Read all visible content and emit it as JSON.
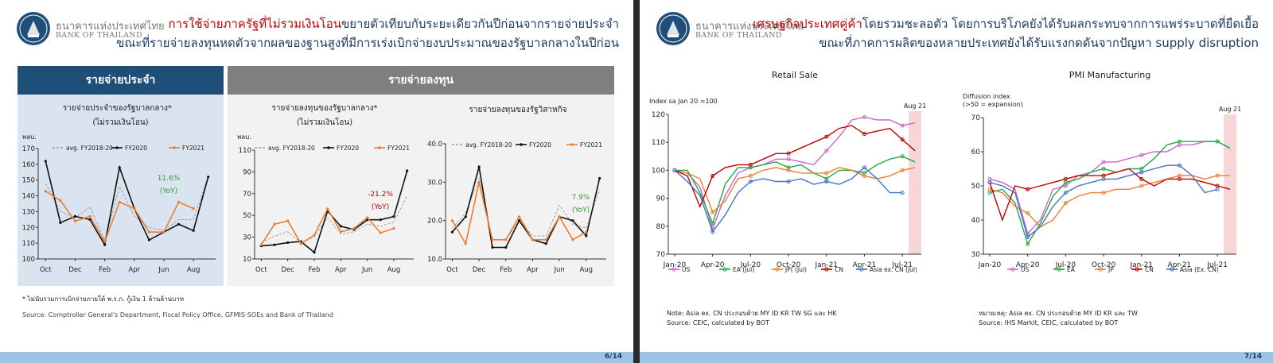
{
  "slide1": {
    "bank_name_th": "ธนาคารแห่งประเทศไทย",
    "bank_name_en": "BANK OF THAILAND",
    "title_line1_red": "การใช้จ่ายภาครัฐที่ไม่รวมเงินโอน",
    "title_line1_rest": "ขยายตัวเทียบกับระยะเดียวกันปีก่อนจากรายจ่ายประจำ",
    "title_line2": "ขณะที่รายจ่ายลงทุนหดตัวจากผลของฐานสูงที่มีการเร่งเบิกจ่ายงบประมาณของรัฐบาลกลางในปีก่อน",
    "section_current": "รายจ่ายประจำ",
    "section_capital": "รายจ่ายลงทุน",
    "footnote": "* ไม่นับรวมการเบิกจ่ายภายใต้ พ.ร.ก. กู้เงิน 1 ล้านล้านบาท",
    "source": "Source: Comptroller General's Department, Fiscal Policy Office, GFMIS-SOEs and Bank of Thailand",
    "page": "6/14"
  },
  "slide2": {
    "bank_name_th": "ธนาคารแห่งประเทศไทย",
    "bank_name_en": "BANK OF THAILAND",
    "title_line1_red": "เศรษฐกิจประเทศคู่ค้า",
    "title_line1_rest": "โดยรวมชะลอตัว โดยการบริโภคยังได้รับผลกระทบจากการแพร่ระบาดที่ยืดเยื้อ",
    "title_line2": "ขณะที่ภาคการผลิตของหลายประเทศยังได้รับแรงกดดันจากปัญหา supply disruption",
    "note_retail": "Note: Asia ex. CN ประกอบด้วย MY ID  KR TW SG และ HK",
    "source_retail": "Source: CEIC, calculated by BOT",
    "note_pmi": "หมายเหตุ: Asia ex. CN ประกอบด้วย MY ID KR และ TW",
    "source_pmi": "Source: IHS Markit, CEIC, calculated by BOT",
    "page": "7/14"
  },
  "chart_data": [
    {
      "type": "line",
      "title": "รายจ่ายประจำของรัฐบาลกลาง*",
      "subtitle": "(ไม่รวมเงินโอน)",
      "ylabel": "พลบ.",
      "ylim": [
        100,
        170
      ],
      "yticks": [
        100,
        110,
        120,
        130,
        140,
        150,
        160,
        170
      ],
      "x_tick_labels": [
        "Oct",
        "Dec",
        "Feb",
        "Apr",
        "Jun",
        "Aug"
      ],
      "x_tick_index": [
        0,
        2,
        4,
        6,
        8,
        10
      ],
      "annotation": [
        "11.6%",
        "(YoY)"
      ],
      "annotation_color": "#2e9e2e",
      "legend_position": "top",
      "series": [
        {
          "name": "avg. FY2018-20",
          "color": "#999999",
          "style": "dashed",
          "values": [
            148,
            130,
            126,
            133,
            112,
            146,
            127,
            120,
            118,
            125,
            125,
            152
          ]
        },
        {
          "name": "FY2020",
          "color": "#111111",
          "style": "solid-marker",
          "values": [
            162,
            123,
            127,
            125,
            109,
            158,
            132,
            112,
            117,
            122,
            118,
            152
          ]
        },
        {
          "name": "FY2021",
          "color": "#ed7d31",
          "style": "solid-marker",
          "values": [
            143,
            137,
            124,
            127,
            111,
            136,
            132,
            117,
            117,
            136,
            132
          ]
        }
      ]
    },
    {
      "type": "line",
      "title": "รายจ่ายลงทุนของรัฐบาลกลาง*",
      "subtitle": "(ไม่รวมเงินโอน)",
      "ylabel": "พลบ.",
      "ylim": [
        10,
        110
      ],
      "yticks": [
        10,
        30,
        50,
        70,
        90,
        110
      ],
      "x_tick_labels": [
        "Oct",
        "Dec",
        "Feb",
        "Apr",
        "Jun",
        "Aug"
      ],
      "x_tick_index": [
        0,
        2,
        4,
        6,
        8,
        10
      ],
      "annotation": [
        "-21.2%",
        "(YoY)"
      ],
      "annotation_color": "#c00000",
      "legend_position": "top",
      "series": [
        {
          "name": "avg. FY2018-20",
          "color": "#999999",
          "style": "dashed",
          "values": [
            25,
            31,
            35,
            25,
            30,
            48,
            33,
            35,
            42,
            40,
            44,
            68
          ]
        },
        {
          "name": "FY2020",
          "color": "#111111",
          "style": "solid-marker",
          "values": [
            22,
            23,
            25,
            26,
            16,
            54,
            40,
            37,
            46,
            46,
            49,
            91
          ]
        },
        {
          "name": "FY2021",
          "color": "#ed7d31",
          "style": "solid-marker",
          "values": [
            23,
            42,
            45,
            24,
            32,
            56,
            35,
            38,
            48,
            34,
            38
          ]
        }
      ]
    },
    {
      "type": "line",
      "title": "รายจ่ายลงทุนของรัฐวิสาหกิจ",
      "ylim": [
        10,
        40
      ],
      "yticks": [
        10.0,
        20.0,
        30.0,
        40.0
      ],
      "x_tick_labels": [
        "Oct",
        "Dec",
        "Feb",
        "Apr",
        "Jun",
        "Aug"
      ],
      "x_tick_index": [
        0,
        2,
        4,
        6,
        8,
        10
      ],
      "annotation": [
        "7.9%",
        "(YoY)"
      ],
      "annotation_color": "#2e9e2e",
      "legend_position": "top",
      "series": [
        {
          "name": "avg. FY2018-20",
          "color": "#999999",
          "style": "dashed",
          "values": [
            18,
            22,
            31,
            15,
            15,
            20,
            16,
            16,
            24,
            19,
            18,
            28
          ]
        },
        {
          "name": "FY2020",
          "color": "#111111",
          "style": "solid-marker",
          "values": [
            17,
            21,
            34,
            13,
            13,
            20,
            15,
            14,
            21,
            20,
            16,
            31
          ]
        },
        {
          "name": "FY2021",
          "color": "#ed7d31",
          "style": "solid-marker",
          "values": [
            20,
            14,
            30,
            15,
            15,
            21,
            15,
            15,
            21,
            15,
            17
          ]
        }
      ]
    },
    {
      "type": "line",
      "title": "Retail Sale",
      "ylabel": "Index sa Jan 20 =100",
      "ylim": [
        70,
        120
      ],
      "yticks": [
        70,
        80,
        90,
        100,
        110,
        120
      ],
      "x_tick_labels": [
        "Jan-20",
        "Apr-20",
        "Jul-20",
        "Oct-20",
        "Jan-21",
        "Apr-21",
        "Jul-21"
      ],
      "x_tick_index": [
        0,
        3,
        6,
        9,
        12,
        15,
        18
      ],
      "shaded_label": "Aug 21",
      "legend_position": "bottom",
      "series": [
        {
          "name": "US",
          "color": "#cc66cc",
          "values": [
            100,
            99,
            94,
            79,
            91,
            99,
            101,
            102,
            104,
            104,
            103,
            102,
            107,
            112,
            118,
            119,
            118,
            118,
            116,
            117
          ]
        },
        {
          "name": "EA (Jul)",
          "color": "#22aa44",
          "values": [
            100,
            100,
            92,
            81,
            95,
            101,
            101,
            102,
            103,
            101,
            102,
            99,
            97,
            100,
            100,
            99,
            102,
            104,
            105,
            103
          ]
        },
        {
          "name": "JP( (Jul)",
          "color": "#ed7d31",
          "values": [
            100,
            99,
            97,
            85,
            89,
            97,
            98,
            100,
            101,
            100,
            99,
            99,
            99,
            101,
            100,
            98,
            97,
            98,
            100,
            101
          ]
        },
        {
          "name": "CN",
          "color": "#c00000",
          "values": [
            100,
            98,
            87,
            98,
            101,
            102,
            102,
            104,
            106,
            106,
            108,
            110,
            112,
            115,
            116,
            113,
            114,
            115,
            111,
            107
          ]
        },
        {
          "name": "Asia ex. CN (Jul)",
          "color": "#4472c4",
          "values": [
            100,
            96,
            91,
            78,
            84,
            92,
            96,
            97,
            96,
            96,
            97,
            95,
            96,
            95,
            97,
            101,
            97,
            92,
            92
          ]
        }
      ]
    },
    {
      "type": "line",
      "title": "PMI Manufacturing",
      "ylabel": "Diffusion index (>50 = expansion)",
      "ylabel_lines": [
        "Diffusion index",
        "(>50 = expansion)"
      ],
      "ylim": [
        30,
        70
      ],
      "yticks": [
        30,
        40,
        50,
        60,
        70
      ],
      "x_tick_labels": [
        "Jan-20",
        "Apr-20",
        "Jul-20",
        "Oct-20",
        "Jan-21",
        "Apr-21",
        "Jul-21"
      ],
      "x_tick_index": [
        0,
        3,
        6,
        9,
        12,
        15,
        18
      ],
      "shaded_label": "Aug 21",
      "legend_position": "bottom",
      "series": [
        {
          "name": "US",
          "color": "#cc66cc",
          "values": [
            52,
            51,
            49,
            36,
            40,
            49,
            50,
            53,
            54,
            57,
            57,
            58,
            59,
            60,
            60,
            62,
            62,
            63,
            63,
            61
          ]
        },
        {
          "name": "EA",
          "color": "#22aa44",
          "values": [
            48,
            49,
            45,
            33,
            39,
            47,
            51,
            52,
            54,
            55,
            54,
            55,
            55,
            58,
            62,
            63,
            63,
            63,
            63,
            61
          ]
        },
        {
          "name": "JP",
          "color": "#ed7d31",
          "values": [
            49,
            48,
            44,
            42,
            38,
            40,
            45,
            47,
            48,
            48,
            49,
            49,
            50,
            51,
            52,
            53,
            53,
            52,
            53,
            53
          ]
        },
        {
          "name": "CN",
          "color": "#c00000",
          "values": [
            51,
            40,
            50,
            49,
            50,
            51,
            52,
            53,
            53,
            53,
            54,
            55,
            52,
            50,
            52,
            52,
            52,
            51,
            50,
            49
          ]
        },
        {
          "name": "Asia (Ex. CN)",
          "color": "#4472c4",
          "values": [
            51,
            50,
            48,
            35,
            38,
            44,
            48,
            50,
            51,
            52,
            52,
            53,
            54,
            55,
            56,
            56,
            53,
            48,
            49
          ]
        }
      ]
    }
  ]
}
